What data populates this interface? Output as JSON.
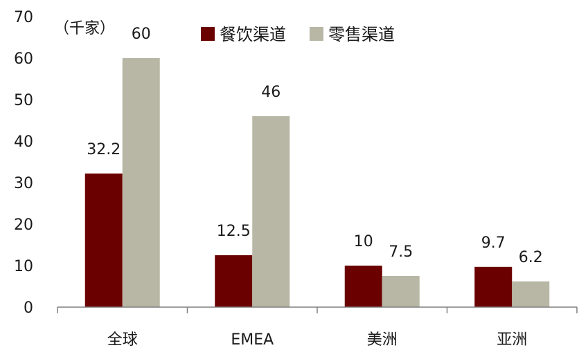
{
  "chart_data": {
    "type": "bar",
    "unit_label": "（千家）",
    "categories": [
      "全球",
      "EMEA",
      "美洲",
      "亚洲"
    ],
    "series": [
      {
        "name": "餐饮渠道",
        "color": "#6b0000",
        "values": [
          32.2,
          12.5,
          10,
          9.7
        ],
        "labels": [
          "32.2",
          "12.5",
          "10",
          "9.7"
        ]
      },
      {
        "name": "零售渠道",
        "color": "#b8b7a6",
        "values": [
          60,
          46,
          7.5,
          6.2
        ],
        "labels": [
          "60",
          "46",
          "7.5",
          "6.2"
        ]
      }
    ],
    "yticks": [
      "0",
      "10",
      "20",
      "30",
      "40",
      "50",
      "60",
      "70"
    ],
    "ylim": [
      0,
      70
    ],
    "grid": false,
    "legend_position": "top"
  }
}
